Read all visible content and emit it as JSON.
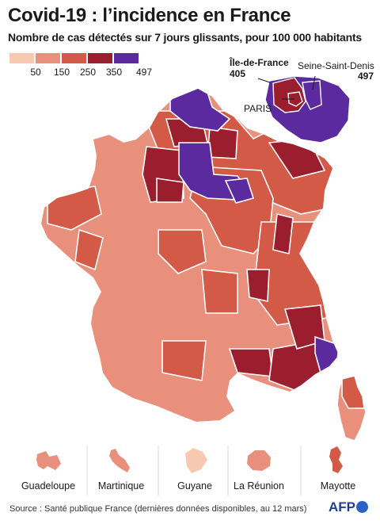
{
  "title": "Covid-19 : l’incidence en France",
  "subtitle": "Nombre de cas détectés sur 7 jours glissants, pour 100 000 habitants",
  "legend": {
    "ticks": [
      "50",
      "150",
      "250",
      "350",
      "497"
    ],
    "colors": [
      "#f8c9b1",
      "#e8907c",
      "#d35a46",
      "#9a1e2e",
      "#5b2a9e"
    ]
  },
  "callouts": {
    "idf_name": "Île-de-France",
    "idf_value": "405",
    "ssd_name": "Seine-Saint-Denis",
    "ssd_value": "497",
    "paris": "PARIS"
  },
  "territories": [
    {
      "name": "Guadeloupe",
      "color": "#e8907c"
    },
    {
      "name": "Martinique",
      "color": "#e8907c"
    },
    {
      "name": "Guyane",
      "color": "#f8c9b1"
    },
    {
      "name": "La Réunion",
      "color": "#e8907c"
    },
    {
      "name": "Mayotte",
      "color": "#d35a46"
    }
  ],
  "source": "Source : Santé publique France (dernières données disponibles, au 12 mars)",
  "logo": "AFP"
}
